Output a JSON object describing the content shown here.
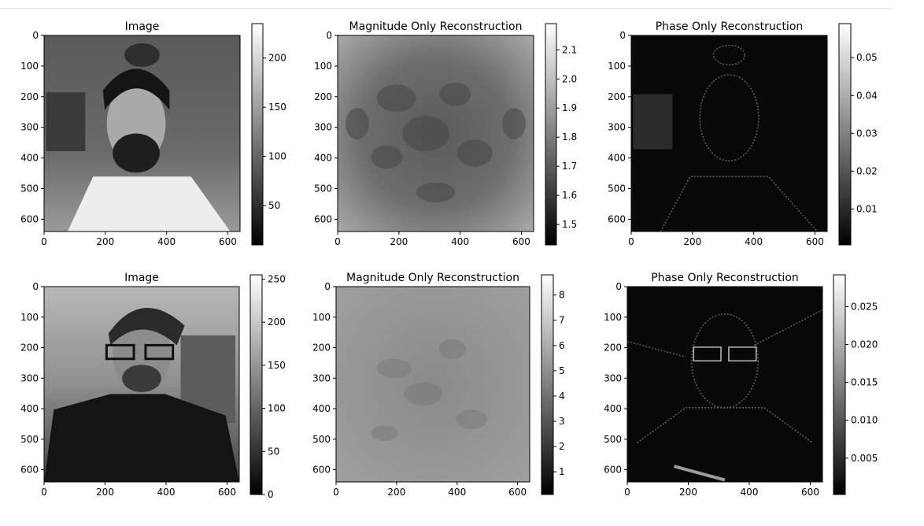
{
  "colors": {
    "axis": "#000000",
    "background": "#ffffff"
  },
  "chart_data": [
    {
      "type": "heatmap",
      "colormap": "gray",
      "content": "portrait-1",
      "title": "Image",
      "xlim": [
        0,
        640
      ],
      "ylim": [
        640,
        0
      ],
      "x_ticks": [
        "0",
        "200",
        "400",
        "600"
      ],
      "y_ticks": [
        "0",
        "100",
        "200",
        "300",
        "400",
        "500",
        "600"
      ],
      "colorbar": {
        "range": [
          10,
          235
        ],
        "ticks": [
          "50",
          "100",
          "150",
          "200"
        ]
      }
    },
    {
      "type": "heatmap",
      "colormap": "gray",
      "content": "magnitude-1",
      "title": "Magnitude Only Reconstruction",
      "xlim": [
        0,
        640
      ],
      "ylim": [
        640,
        0
      ],
      "x_ticks": [
        "0",
        "200",
        "400",
        "600"
      ],
      "y_ticks": [
        "0",
        "100",
        "200",
        "300",
        "400",
        "500",
        "600"
      ],
      "colorbar": {
        "range": [
          1.43,
          2.19
        ],
        "ticks": [
          "1.5",
          "1.6",
          "1.7",
          "1.8",
          "1.9",
          "2.0",
          "2.1"
        ]
      }
    },
    {
      "type": "heatmap",
      "colormap": "gray",
      "content": "phase-1",
      "title": "Phase Only Reconstruction",
      "xlim": [
        0,
        640
      ],
      "ylim": [
        640,
        0
      ],
      "x_ticks": [
        "0",
        "200",
        "400",
        "600"
      ],
      "y_ticks": [
        "0",
        "100",
        "200",
        "300",
        "400",
        "500",
        "600"
      ],
      "colorbar": {
        "range": [
          0.0005,
          0.059
        ],
        "ticks": [
          "0.01",
          "0.02",
          "0.03",
          "0.04",
          "0.05"
        ]
      }
    },
    {
      "type": "heatmap",
      "colormap": "gray",
      "content": "portrait-2",
      "title": "Image",
      "xlim": [
        0,
        640
      ],
      "ylim": [
        640,
        0
      ],
      "x_ticks": [
        "0",
        "200",
        "400",
        "600"
      ],
      "y_ticks": [
        "0",
        "100",
        "200",
        "300",
        "400",
        "500",
        "600"
      ],
      "colorbar": {
        "range": [
          0,
          255
        ],
        "ticks": [
          "0",
          "50",
          "100",
          "150",
          "200",
          "250"
        ]
      }
    },
    {
      "type": "heatmap",
      "colormap": "gray",
      "content": "magnitude-2",
      "title": "Magnitude Only Reconstruction",
      "xlim": [
        0,
        640
      ],
      "ylim": [
        640,
        0
      ],
      "x_ticks": [
        "0",
        "200",
        "400",
        "600"
      ],
      "y_ticks": [
        "0",
        "100",
        "200",
        "300",
        "400",
        "500",
        "600"
      ],
      "colorbar": {
        "range": [
          0.1,
          8.8
        ],
        "ticks": [
          "1",
          "2",
          "3",
          "4",
          "5",
          "6",
          "7",
          "8"
        ]
      }
    },
    {
      "type": "heatmap",
      "colormap": "gray",
      "content": "phase-2",
      "title": "Phase Only Reconstruction",
      "xlim": [
        0,
        640
      ],
      "ylim": [
        640,
        0
      ],
      "x_ticks": [
        "0",
        "200",
        "400",
        "600"
      ],
      "y_ticks": [
        "0",
        "100",
        "200",
        "300",
        "400",
        "500",
        "600"
      ],
      "colorbar": {
        "range": [
          0.0002,
          0.0292
        ],
        "ticks": [
          "0.005",
          "0.010",
          "0.015",
          "0.020",
          "0.025"
        ]
      }
    }
  ]
}
